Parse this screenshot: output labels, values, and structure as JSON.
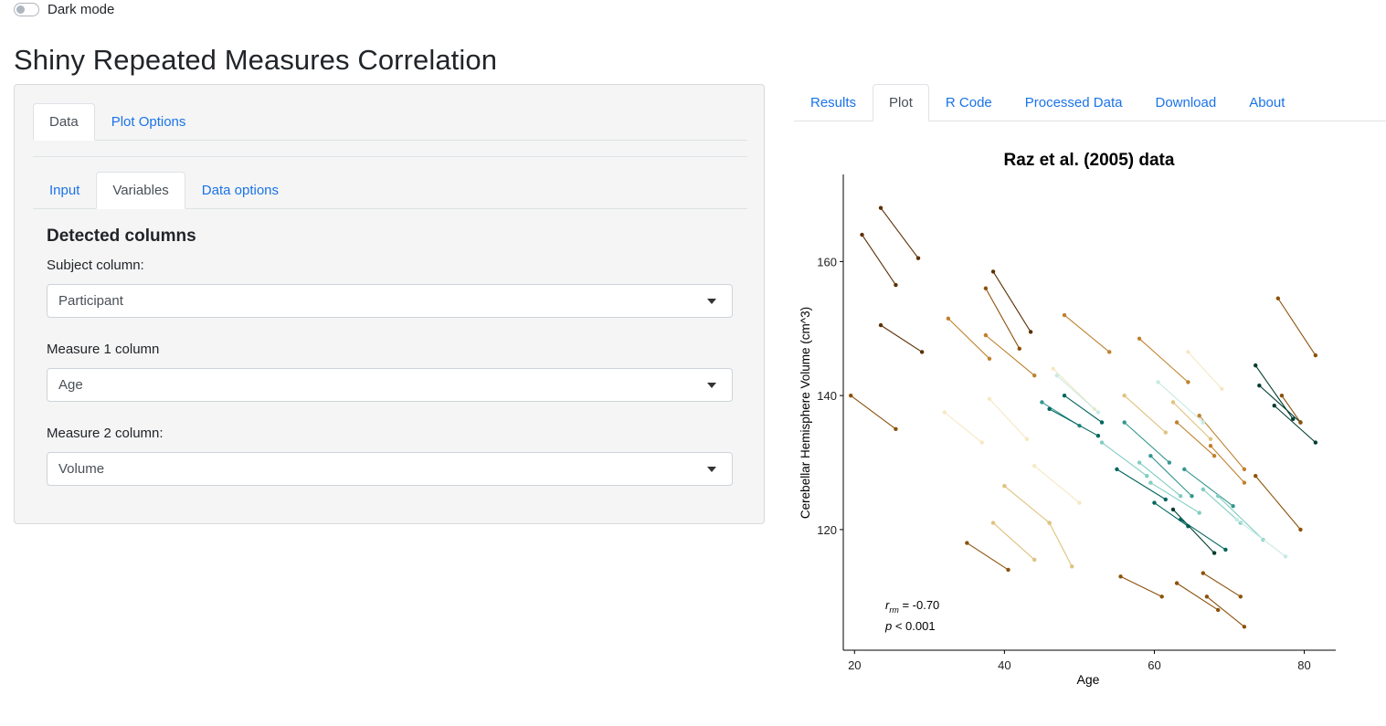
{
  "dark_mode": {
    "label": "Dark mode",
    "enabled": false
  },
  "app_title": "Shiny Repeated Measures Correlation",
  "left_panel": {
    "outer_tabs": [
      {
        "label": "Data",
        "active": true
      },
      {
        "label": "Plot Options",
        "active": false
      }
    ],
    "inner_tabs": [
      {
        "label": "Input",
        "active": false
      },
      {
        "label": "Variables",
        "active": true
      },
      {
        "label": "Data options",
        "active": false
      }
    ],
    "section_title": "Detected columns",
    "fields": [
      {
        "label": "Subject column:",
        "value": "Participant"
      },
      {
        "label": "Measure 1 column",
        "value": "Age"
      },
      {
        "label": "Measure 2 column:",
        "value": "Volume"
      }
    ]
  },
  "right_tabs": [
    {
      "label": "Results",
      "active": false
    },
    {
      "label": "Plot",
      "active": true
    },
    {
      "label": "R Code",
      "active": false
    },
    {
      "label": "Processed Data",
      "active": false
    },
    {
      "label": "Download",
      "active": false
    },
    {
      "label": "About",
      "active": false
    }
  ],
  "chart_data": {
    "type": "scatter",
    "title": "Raz et al. (2005) data",
    "xlabel": "Age",
    "ylabel": "Cerebellar Hemisphere Volume (cm^3)",
    "xlim": [
      18.5,
      84.2
    ],
    "ylim": [
      102,
      173
    ],
    "xticks": [
      20,
      40,
      60,
      80
    ],
    "yticks": [
      120,
      140,
      160
    ],
    "grid": false,
    "legend": "none",
    "palette": [
      "#5c3004",
      "#8c510a",
      "#bf812d",
      "#dfc27d",
      "#f6e8c3",
      "#c7eae5",
      "#80cdc1",
      "#35978f",
      "#01665e",
      "#003c30"
    ],
    "annotation": {
      "r_prefix": "r",
      "r_sub": "rm",
      "r_value": " = -0.70",
      "p_prefix": "p",
      "p_value": " < 0.001"
    },
    "subjects": [
      {
        "c": 0,
        "x": [
          21,
          25.5
        ],
        "y": [
          164,
          156.5
        ]
      },
      {
        "c": 0,
        "x": [
          23.5,
          28.5
        ],
        "y": [
          168,
          160.5
        ]
      },
      {
        "c": 0,
        "x": [
          23.5,
          29
        ],
        "y": [
          150.5,
          146.5
        ]
      },
      {
        "c": 1,
        "x": [
          19.5,
          25.5
        ],
        "y": [
          140,
          135
        ]
      },
      {
        "c": 0,
        "x": [
          38.5,
          43.5
        ],
        "y": [
          158.5,
          149.5
        ]
      },
      {
        "c": 1,
        "x": [
          37.5,
          42
        ],
        "y": [
          156,
          147
        ]
      },
      {
        "c": 2,
        "x": [
          32.5,
          38
        ],
        "y": [
          151.5,
          145.5
        ]
      },
      {
        "c": 2,
        "x": [
          37.5,
          44
        ],
        "y": [
          149,
          143
        ]
      },
      {
        "c": 2,
        "x": [
          48,
          54
        ],
        "y": [
          152,
          146.5
        ]
      },
      {
        "c": 1,
        "x": [
          35,
          40.5
        ],
        "y": [
          118,
          114
        ]
      },
      {
        "c": 3,
        "x": [
          38.5,
          44
        ],
        "y": [
          121,
          115.5
        ]
      },
      {
        "c": 3,
        "x": [
          40,
          46
        ],
        "y": [
          126.5,
          121
        ]
      },
      {
        "c": 4,
        "x": [
          44,
          50
        ],
        "y": [
          129.5,
          124
        ]
      },
      {
        "c": 3,
        "x": [
          46,
          49
        ],
        "y": [
          121,
          114.5
        ]
      },
      {
        "c": 4,
        "x": [
          46.5,
          52
        ],
        "y": [
          144,
          138
        ]
      },
      {
        "c": 5,
        "x": [
          47,
          52.5
        ],
        "y": [
          143,
          137.5
        ]
      },
      {
        "c": 4,
        "x": [
          32,
          37
        ],
        "y": [
          137.5,
          133
        ]
      },
      {
        "c": 4,
        "x": [
          38,
          43
        ],
        "y": [
          139.5,
          133.5
        ]
      },
      {
        "c": 7,
        "x": [
          45,
          50
        ],
        "y": [
          139,
          135.5
        ]
      },
      {
        "c": 8,
        "x": [
          46,
          52.5
        ],
        "y": [
          138,
          134
        ]
      },
      {
        "c": 8,
        "x": [
          48,
          53
        ],
        "y": [
          140,
          136
        ]
      },
      {
        "c": 3,
        "x": [
          56,
          61.5
        ],
        "y": [
          140,
          134.5
        ]
      },
      {
        "c": 2,
        "x": [
          58,
          64.5
        ],
        "y": [
          148.5,
          142
        ]
      },
      {
        "c": 4,
        "x": [
          64.5,
          69
        ],
        "y": [
          146.5,
          141
        ]
      },
      {
        "c": 3,
        "x": [
          62.5,
          67.5
        ],
        "y": [
          139,
          133.5
        ]
      },
      {
        "c": 2,
        "x": [
          63,
          68
        ],
        "y": [
          136,
          131
        ]
      },
      {
        "c": 2,
        "x": [
          66,
          72
        ],
        "y": [
          137,
          129
        ]
      },
      {
        "c": 5,
        "x": [
          60.5,
          66.5
        ],
        "y": [
          142,
          136
        ]
      },
      {
        "c": 6,
        "x": [
          53,
          59
        ],
        "y": [
          133,
          128
        ]
      },
      {
        "c": 8,
        "x": [
          55,
          61.5
        ],
        "y": [
          129,
          124.5
        ]
      },
      {
        "c": 7,
        "x": [
          56,
          62
        ],
        "y": [
          136,
          130
        ]
      },
      {
        "c": 6,
        "x": [
          58,
          63.5
        ],
        "y": [
          130,
          125
        ]
      },
      {
        "c": 7,
        "x": [
          59.5,
          65
        ],
        "y": [
          131,
          125
        ]
      },
      {
        "c": 6,
        "x": [
          59.5,
          66
        ],
        "y": [
          127,
          122.5
        ]
      },
      {
        "c": 8,
        "x": [
          60,
          64.5
        ],
        "y": [
          124,
          120.5
        ]
      },
      {
        "c": 9,
        "x": [
          62.5,
          68
        ],
        "y": [
          123,
          116.5
        ]
      },
      {
        "c": 8,
        "x": [
          63.5,
          69.5
        ],
        "y": [
          121.5,
          117
        ]
      },
      {
        "c": 7,
        "x": [
          64,
          70.5
        ],
        "y": [
          129,
          123.5
        ]
      },
      {
        "c": 6,
        "x": [
          66.5,
          71.5
        ],
        "y": [
          126,
          121
        ]
      },
      {
        "c": 6,
        "x": [
          68.5,
          74.5
        ],
        "y": [
          125,
          118.5
        ]
      },
      {
        "c": 5,
        "x": [
          71,
          77.5
        ],
        "y": [
          121.5,
          116
        ]
      },
      {
        "c": 2,
        "x": [
          67.5,
          72
        ],
        "y": [
          132.5,
          127
        ]
      },
      {
        "c": 1,
        "x": [
          73.5,
          79.5
        ],
        "y": [
          128,
          120
        ]
      },
      {
        "c": 1,
        "x": [
          55.5,
          61
        ],
        "y": [
          113,
          110
        ]
      },
      {
        "c": 1,
        "x": [
          63,
          68.5
        ],
        "y": [
          112,
          108
        ]
      },
      {
        "c": 1,
        "x": [
          66.5,
          71.5
        ],
        "y": [
          113.5,
          110
        ]
      },
      {
        "c": 1,
        "x": [
          67,
          72
        ],
        "y": [
          110,
          105.5
        ]
      },
      {
        "c": 9,
        "x": [
          73.5,
          78.5
        ],
        "y": [
          144.5,
          136.5
        ]
      },
      {
        "c": 9,
        "x": [
          74,
          79.5
        ],
        "y": [
          141.5,
          136
        ]
      },
      {
        "c": 9,
        "x": [
          76,
          81.5
        ],
        "y": [
          138.5,
          133
        ]
      },
      {
        "c": 1,
        "x": [
          76.5,
          81.5
        ],
        "y": [
          154.5,
          146
        ]
      },
      {
        "c": 1,
        "x": [
          77,
          79.5
        ],
        "y": [
          140,
          136
        ]
      }
    ]
  }
}
